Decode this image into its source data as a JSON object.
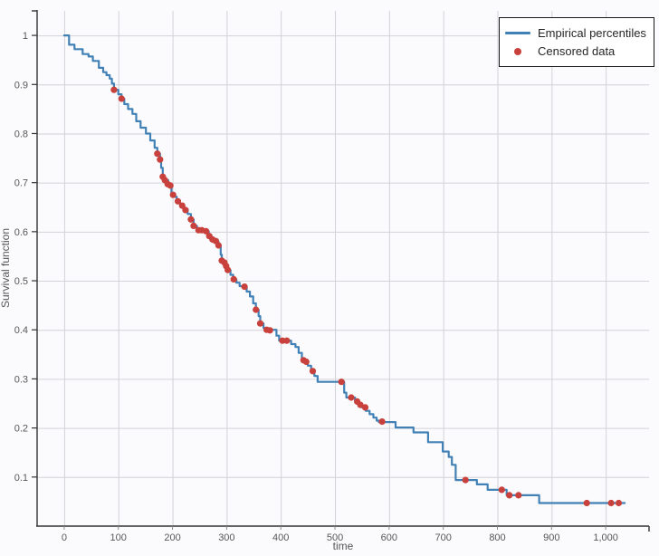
{
  "chart_data": {
    "type": "line",
    "subtype": "kaplan-meier-step",
    "title": "",
    "xlabel": "time",
    "ylabel": "Survival function",
    "xlim": [
      -50,
      1080
    ],
    "ylim": [
      0,
      1.05
    ],
    "grid": true,
    "legend_position": "top-right",
    "x_ticks": [
      [
        0,
        "0"
      ],
      [
        100,
        "100"
      ],
      [
        200,
        "200"
      ],
      [
        300,
        "300"
      ],
      [
        400,
        "400"
      ],
      [
        500,
        "500"
      ],
      [
        600,
        "600"
      ],
      [
        700,
        "700"
      ],
      [
        800,
        "800"
      ],
      [
        900,
        "900"
      ],
      [
        1000,
        "1,000"
      ]
    ],
    "y_ticks": [
      [
        0.1,
        "0.1"
      ],
      [
        0.2,
        "0.2"
      ],
      [
        0.3,
        "0.3"
      ],
      [
        0.4,
        "0.4"
      ],
      [
        0.5,
        "0.5"
      ],
      [
        0.6,
        "0.6"
      ],
      [
        0.7,
        "0.7"
      ],
      [
        0.8,
        "0.8"
      ],
      [
        0.9,
        "0.9"
      ],
      [
        1,
        "1"
      ]
    ],
    "style": {
      "background": "#fbfbfd",
      "grid_color": "#d2d2d8",
      "spine_color": "#333333",
      "x_tick_color": "#8a8a8a",
      "tick_label_color": "#57575a",
      "legend_border": "#1a1a1a",
      "legend_text": "#262626"
    },
    "series": [
      {
        "name": "Empirical percentiles",
        "type": "step",
        "color": "#4181b5",
        "line_width": 2.2,
        "points": [
          [
            0,
            1.0
          ],
          [
            9,
            0.981
          ],
          [
            19,
            0.972
          ],
          [
            34,
            0.962
          ],
          [
            45,
            0.957
          ],
          [
            53,
            0.948
          ],
          [
            64,
            0.934
          ],
          [
            72,
            0.925
          ],
          [
            78,
            0.919
          ],
          [
            84,
            0.912
          ],
          [
            88,
            0.902
          ],
          [
            92,
            0.889
          ],
          [
            100,
            0.88
          ],
          [
            106,
            0.871
          ],
          [
            111,
            0.86
          ],
          [
            118,
            0.85
          ],
          [
            126,
            0.84
          ],
          [
            133,
            0.825
          ],
          [
            141,
            0.812
          ],
          [
            151,
            0.8
          ],
          [
            159,
            0.786
          ],
          [
            167,
            0.771
          ],
          [
            172,
            0.759
          ],
          [
            177,
            0.747
          ],
          [
            179,
            0.73
          ],
          [
            182,
            0.712
          ],
          [
            186,
            0.705
          ],
          [
            192,
            0.696
          ],
          [
            198,
            0.678
          ],
          [
            203,
            0.671
          ],
          [
            208,
            0.663
          ],
          [
            214,
            0.655
          ],
          [
            221,
            0.646
          ],
          [
            228,
            0.636
          ],
          [
            234,
            0.625
          ],
          [
            239,
            0.612
          ],
          [
            245,
            0.604
          ],
          [
            262,
            0.601
          ],
          [
            267,
            0.591
          ],
          [
            272,
            0.584
          ],
          [
            283,
            0.58
          ],
          [
            285,
            0.572
          ],
          [
            289,
            0.553
          ],
          [
            291,
            0.541
          ],
          [
            295,
            0.537
          ],
          [
            298,
            0.53
          ],
          [
            302,
            0.522
          ],
          [
            307,
            0.512
          ],
          [
            312,
            0.503
          ],
          [
            318,
            0.496
          ],
          [
            324,
            0.489
          ],
          [
            337,
            0.478
          ],
          [
            343,
            0.468
          ],
          [
            349,
            0.454
          ],
          [
            354,
            0.441
          ],
          [
            359,
            0.428
          ],
          [
            362,
            0.413
          ],
          [
            368,
            0.404
          ],
          [
            372,
            0.4
          ],
          [
            392,
            0.388
          ],
          [
            397,
            0.378
          ],
          [
            419,
            0.371
          ],
          [
            427,
            0.365
          ],
          [
            433,
            0.353
          ],
          [
            439,
            0.342
          ],
          [
            444,
            0.336
          ],
          [
            450,
            0.327
          ],
          [
            456,
            0.317
          ],
          [
            462,
            0.306
          ],
          [
            468,
            0.294
          ],
          [
            517,
            0.272
          ],
          [
            521,
            0.262
          ],
          [
            537,
            0.254
          ],
          [
            543,
            0.248
          ],
          [
            550,
            0.242
          ],
          [
            557,
            0.235
          ],
          [
            564,
            0.228
          ],
          [
            571,
            0.221
          ],
          [
            577,
            0.215
          ],
          [
            581,
            0.212
          ],
          [
            612,
            0.201
          ],
          [
            645,
            0.191
          ],
          [
            672,
            0.171
          ],
          [
            699,
            0.152
          ],
          [
            710,
            0.141
          ],
          [
            716,
            0.125
          ],
          [
            723,
            0.094
          ],
          [
            762,
            0.085
          ],
          [
            782,
            0.074
          ],
          [
            817,
            0.063
          ],
          [
            877,
            0.047
          ],
          [
            1035,
            0.047
          ]
        ]
      },
      {
        "name": "Censored data",
        "type": "scatter",
        "color": "#c9413c",
        "marker_radius": 3.6,
        "points": [
          [
            92,
            0.889
          ],
          [
            106,
            0.871
          ],
          [
            172,
            0.759
          ],
          [
            177,
            0.747
          ],
          [
            182,
            0.712
          ],
          [
            186,
            0.705
          ],
          [
            191,
            0.697
          ],
          [
            196,
            0.694
          ],
          [
            201,
            0.675
          ],
          [
            210,
            0.662
          ],
          [
            218,
            0.653
          ],
          [
            224,
            0.644
          ],
          [
            234,
            0.625
          ],
          [
            239,
            0.612
          ],
          [
            248,
            0.603
          ],
          [
            254,
            0.603
          ],
          [
            262,
            0.601
          ],
          [
            268,
            0.591
          ],
          [
            274,
            0.584
          ],
          [
            280,
            0.581
          ],
          [
            285,
            0.572
          ],
          [
            291,
            0.541
          ],
          [
            296,
            0.537
          ],
          [
            299,
            0.53
          ],
          [
            302,
            0.522
          ],
          [
            313,
            0.503
          ],
          [
            333,
            0.488
          ],
          [
            354,
            0.441
          ],
          [
            362,
            0.413
          ],
          [
            374,
            0.4
          ],
          [
            380,
            0.399
          ],
          [
            403,
            0.378
          ],
          [
            411,
            0.378
          ],
          [
            442,
            0.338
          ],
          [
            447,
            0.335
          ],
          [
            459,
            0.316
          ],
          [
            512,
            0.294
          ],
          [
            530,
            0.262
          ],
          [
            541,
            0.254
          ],
          [
            547,
            0.247
          ],
          [
            556,
            0.242
          ],
          [
            587,
            0.213
          ],
          [
            741,
            0.094
          ],
          [
            808,
            0.074
          ],
          [
            822,
            0.063
          ],
          [
            839,
            0.063
          ],
          [
            965,
            0.047
          ],
          [
            1010,
            0.047
          ],
          [
            1024,
            0.047
          ]
        ]
      }
    ]
  }
}
